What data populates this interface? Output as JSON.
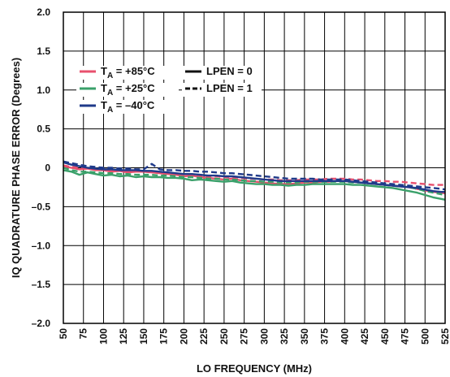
{
  "chart_data": {
    "type": "line",
    "title": "",
    "xlabel": "LO FREQUENCY (MHz)",
    "ylabel": "IQ QUADRATURE PHASE ERROR (Degrees)",
    "xlim": [
      50,
      525
    ],
    "ylim": [
      -2.0,
      2.0
    ],
    "grid": true,
    "x_ticks": [
      "50",
      "75",
      "100",
      "125",
      "150",
      "175",
      "200",
      "225",
      "250",
      "275",
      "300",
      "325",
      "350",
      "375",
      "400",
      "425",
      "450",
      "475",
      "500",
      "525"
    ],
    "y_ticks": [
      "2.0",
      "1.5",
      "1.0",
      "0.5",
      "0",
      "–0.5",
      "–1.0",
      "–1.5",
      "–2.0"
    ],
    "legend": {
      "placement": "upper-left",
      "entries": [
        {
          "prefix": "T",
          "sub": "A",
          "text": " = +85°C",
          "color": "#e8506e",
          "dash": "solid"
        },
        {
          "prefix": "",
          "sub": "",
          "text": "LPEN = 0",
          "color": "#111111",
          "dash": "solid"
        },
        {
          "prefix": "T",
          "sub": "A",
          "text": " = +25°C",
          "color": "#3aa06a",
          "dash": "solid"
        },
        {
          "prefix": "",
          "sub": "",
          "text": "LPEN = 1",
          "color": "#111111",
          "dash": "dashed"
        },
        {
          "prefix": "T",
          "sub": "A",
          "text": " = –40°C",
          "color": "#1f3a8a",
          "dash": "solid"
        }
      ]
    },
    "x": [
      50,
      60,
      70,
      80,
      90,
      100,
      110,
      120,
      130,
      140,
      150,
      160,
      170,
      180,
      190,
      200,
      210,
      220,
      230,
      240,
      250,
      260,
      270,
      280,
      290,
      300,
      310,
      320,
      330,
      340,
      350,
      360,
      370,
      380,
      390,
      400,
      410,
      420,
      430,
      440,
      450,
      460,
      470,
      480,
      490,
      500,
      510,
      520,
      525
    ],
    "series": [
      {
        "temp": "+85°C",
        "lpen": "0",
        "color": "#e8506e",
        "dash": "solid",
        "values": [
          0.02,
          0.0,
          -0.02,
          -0.01,
          -0.03,
          -0.03,
          -0.05,
          -0.04,
          -0.06,
          -0.05,
          -0.05,
          -0.06,
          -0.07,
          -0.08,
          -0.09,
          -0.11,
          -0.1,
          -0.12,
          -0.13,
          -0.14,
          -0.15,
          -0.14,
          -0.16,
          -0.17,
          -0.18,
          -0.19,
          -0.2,
          -0.21,
          -0.21,
          -0.2,
          -0.19,
          -0.19,
          -0.18,
          -0.18,
          -0.17,
          -0.17,
          -0.18,
          -0.19,
          -0.2,
          -0.21,
          -0.22,
          -0.23,
          -0.24,
          -0.25,
          -0.27,
          -0.29,
          -0.31,
          -0.32,
          -0.33
        ]
      },
      {
        "temp": "+85°C",
        "lpen": "1",
        "color": "#e8506e",
        "dash": "dashed",
        "values": [
          0.03,
          0.01,
          0.0,
          -0.01,
          -0.02,
          -0.02,
          -0.03,
          -0.04,
          -0.04,
          -0.05,
          -0.05,
          -0.05,
          -0.06,
          -0.07,
          -0.08,
          -0.09,
          -0.09,
          -0.1,
          -0.11,
          -0.11,
          -0.12,
          -0.12,
          -0.13,
          -0.14,
          -0.14,
          -0.15,
          -0.15,
          -0.16,
          -0.16,
          -0.16,
          -0.15,
          -0.15,
          -0.15,
          -0.14,
          -0.14,
          -0.14,
          -0.15,
          -0.15,
          -0.16,
          -0.17,
          -0.17,
          -0.18,
          -0.18,
          -0.19,
          -0.2,
          -0.21,
          -0.22,
          -0.22,
          -0.22
        ]
      },
      {
        "temp": "+25°C",
        "lpen": "0",
        "color": "#3aa06a",
        "dash": "solid",
        "values": [
          -0.03,
          -0.05,
          -0.09,
          -0.06,
          -0.08,
          -0.1,
          -0.09,
          -0.11,
          -0.1,
          -0.12,
          -0.11,
          -0.12,
          -0.12,
          -0.13,
          -0.13,
          -0.14,
          -0.16,
          -0.15,
          -0.16,
          -0.17,
          -0.18,
          -0.17,
          -0.19,
          -0.2,
          -0.21,
          -0.21,
          -0.22,
          -0.22,
          -0.23,
          -0.22,
          -0.22,
          -0.21,
          -0.21,
          -0.21,
          -0.21,
          -0.21,
          -0.22,
          -0.22,
          -0.23,
          -0.24,
          -0.25,
          -0.26,
          -0.28,
          -0.3,
          -0.32,
          -0.35,
          -0.38,
          -0.4,
          -0.41
        ]
      },
      {
        "temp": "+25°C",
        "lpen": "1",
        "color": "#3aa06a",
        "dash": "dashed",
        "values": [
          0.0,
          -0.03,
          -0.05,
          -0.05,
          -0.06,
          -0.07,
          -0.07,
          -0.08,
          -0.08,
          -0.09,
          -0.09,
          -0.09,
          -0.1,
          -0.1,
          -0.11,
          -0.12,
          -0.12,
          -0.13,
          -0.14,
          -0.14,
          -0.15,
          -0.15,
          -0.16,
          -0.17,
          -0.17,
          -0.18,
          -0.18,
          -0.19,
          -0.19,
          -0.19,
          -0.18,
          -0.18,
          -0.18,
          -0.18,
          -0.18,
          -0.18,
          -0.19,
          -0.19,
          -0.2,
          -0.21,
          -0.22,
          -0.23,
          -0.24,
          -0.25,
          -0.27,
          -0.3,
          -0.32,
          -0.34,
          -0.35
        ]
      },
      {
        "temp": "–40°C",
        "lpen": "0",
        "color": "#1f3a8a",
        "dash": "solid",
        "values": [
          0.07,
          0.04,
          0.02,
          0.0,
          -0.01,
          -0.02,
          -0.02,
          -0.03,
          -0.03,
          -0.03,
          -0.04,
          -0.04,
          -0.05,
          -0.06,
          -0.07,
          -0.08,
          -0.08,
          -0.09,
          -0.1,
          -0.1,
          -0.11,
          -0.11,
          -0.12,
          -0.13,
          -0.14,
          -0.15,
          -0.16,
          -0.17,
          -0.17,
          -0.17,
          -0.17,
          -0.17,
          -0.17,
          -0.17,
          -0.17,
          -0.17,
          -0.18,
          -0.19,
          -0.2,
          -0.21,
          -0.22,
          -0.23,
          -0.24,
          -0.25,
          -0.26,
          -0.28,
          -0.3,
          -0.31,
          -0.31
        ]
      },
      {
        "temp": "–40°C",
        "lpen": "1",
        "color": "#1f3a8a",
        "dash": "dashed",
        "values": [
          0.08,
          0.06,
          0.04,
          0.02,
          0.01,
          0.0,
          0.0,
          -0.01,
          -0.01,
          -0.02,
          -0.02,
          0.05,
          -0.02,
          -0.03,
          -0.03,
          -0.04,
          -0.04,
          -0.05,
          -0.05,
          -0.06,
          -0.07,
          -0.07,
          -0.08,
          -0.09,
          -0.1,
          -0.11,
          -0.12,
          -0.13,
          -0.14,
          -0.14,
          -0.14,
          -0.14,
          -0.15,
          -0.15,
          -0.15,
          -0.15,
          -0.16,
          -0.17,
          -0.18,
          -0.19,
          -0.2,
          -0.21,
          -0.22,
          -0.23,
          -0.24,
          -0.25,
          -0.26,
          -0.27,
          -0.28
        ]
      }
    ]
  }
}
